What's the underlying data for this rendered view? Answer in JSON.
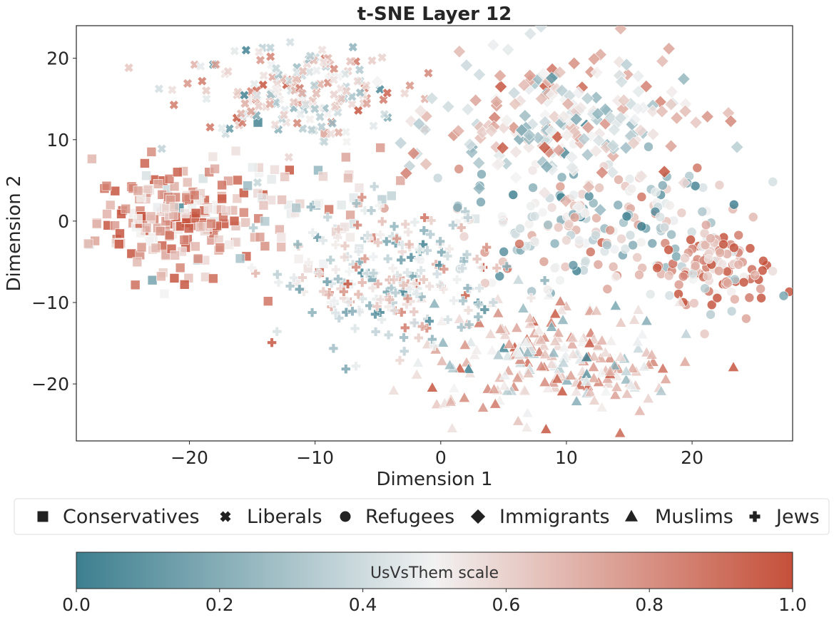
{
  "chart_data": {
    "type": "scatter",
    "title": "t-SNE Layer 12",
    "xlabel": "Dimension 1",
    "ylabel": "Dimension 2",
    "xlim": [
      -29,
      28
    ],
    "ylim": [
      -27,
      24
    ],
    "xticks": [
      -20,
      -10,
      0,
      10,
      20
    ],
    "xtick_labels": [
      "−20",
      "−10",
      "0",
      "10",
      "20"
    ],
    "yticks": [
      20,
      10,
      0,
      -10,
      -20
    ],
    "ytick_labels": [
      "20",
      "10",
      "0",
      "−10",
      "−20"
    ],
    "grid": false,
    "legend_position": "bottom",
    "legend": [
      {
        "label": "Conservatives",
        "marker": "square"
      },
      {
        "label": "Liberals",
        "marker": "x"
      },
      {
        "label": "Refugees",
        "marker": "circle"
      },
      {
        "label": "Immigrants",
        "marker": "diamond"
      },
      {
        "label": "Muslims",
        "marker": "triangle"
      },
      {
        "label": "Jews",
        "marker": "plus"
      }
    ],
    "colorbar": {
      "label": "UsVsThem scale",
      "range": [
        0.0,
        1.0
      ],
      "tick_values": [
        0.0,
        0.2,
        0.4,
        0.6,
        0.8,
        1.0
      ],
      "tick_labels": [
        "0.0",
        "0.2",
        "0.4",
        "0.6",
        "0.8",
        "1.0"
      ],
      "colors": [
        "#3d7f8f",
        "#f2f2f2",
        "#c5503a"
      ]
    },
    "clusters": [
      {
        "name": "Conservatives",
        "marker": "square",
        "cx": -21,
        "cy": 0,
        "sx": 3.2,
        "sy": 3.4,
        "n": 190,
        "mean_usvsthem": 0.78
      },
      {
        "name": "Conservatives",
        "marker": "square",
        "cx": -12,
        "cy": 2,
        "sx": 4.5,
        "sy": 4.5,
        "n": 70,
        "mean_usvsthem": 0.55
      },
      {
        "name": "Liberals",
        "marker": "x",
        "cx": -12,
        "cy": 16,
        "sx": 4.5,
        "sy": 2.8,
        "n": 200,
        "mean_usvsthem": 0.55
      },
      {
        "name": "Refugees",
        "marker": "circle",
        "cx": 12,
        "cy": 0,
        "sx": 5.5,
        "sy": 4.0,
        "n": 200,
        "mean_usvsthem": 0.42
      },
      {
        "name": "Refugees",
        "marker": "circle",
        "cx": 22,
        "cy": -6,
        "sx": 2.2,
        "sy": 2.5,
        "n": 110,
        "mean_usvsthem": 0.8
      },
      {
        "name": "Immigrants",
        "marker": "diamond",
        "cx": 10,
        "cy": 12,
        "sx": 5.0,
        "sy": 4.0,
        "n": 230,
        "mean_usvsthem": 0.5
      },
      {
        "name": "Muslims",
        "marker": "triangle",
        "cx": 9,
        "cy": -17,
        "sx": 5.0,
        "sy": 3.5,
        "n": 230,
        "mean_usvsthem": 0.6
      },
      {
        "name": "Jews",
        "marker": "plus",
        "cx": -4,
        "cy": -7,
        "sx": 4.5,
        "sy": 4.0,
        "n": 220,
        "mean_usvsthem": 0.45
      }
    ]
  }
}
